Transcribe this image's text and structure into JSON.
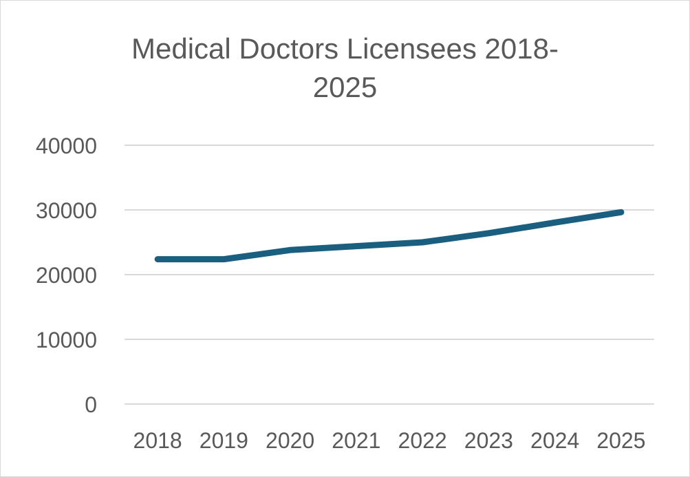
{
  "chart_data": {
    "type": "line",
    "title": "Medical Doctors Licensees 2018-2025",
    "title_lines": [
      "Medical Doctors Licensees 2018-",
      "2025"
    ],
    "categories": [
      "2018",
      "2019",
      "2020",
      "2021",
      "2022",
      "2023",
      "2024",
      "2025"
    ],
    "series": [
      {
        "values": [
          22380,
          22380,
          23800,
          24400,
          25000,
          26400,
          28050,
          29650
        ],
        "color": "#1a5f7f"
      }
    ],
    "ylim": [
      0,
      40000
    ],
    "yticks": [
      "0",
      "10000",
      "20000",
      "30000",
      "40000"
    ],
    "xlabel": "",
    "ylabel": "",
    "grid": true,
    "legend": "none",
    "gridline_color": "#d9d9d9"
  }
}
